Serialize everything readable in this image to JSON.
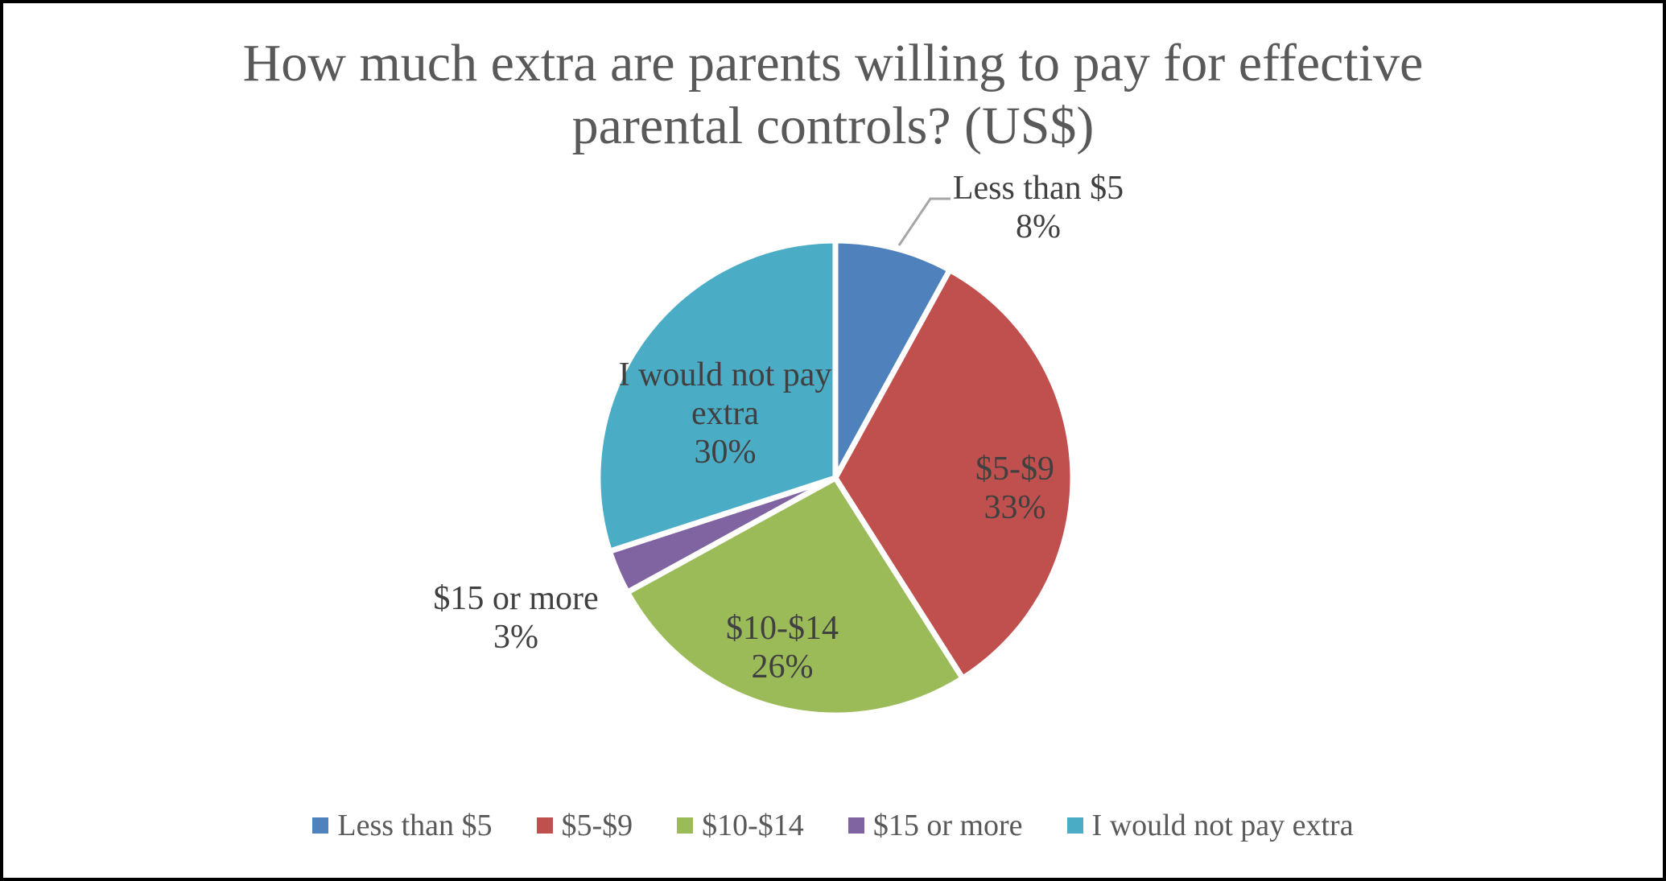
{
  "chart_data": {
    "type": "pie",
    "title": "How much extra are parents willing to pay for effective parental controls? (US$)",
    "title_lines": [
      "How much extra are parents willing to pay for effective",
      "parental controls? (US$)"
    ],
    "unit": "percent",
    "start_angle_deg": 0,
    "direction": "clockwise",
    "legend_position": "bottom",
    "slices": [
      {
        "label": "Less than $5",
        "value": 8,
        "pct_label": "8%",
        "color": "#4F81BD",
        "label_placement": "outside-top-right",
        "leader_line": true
      },
      {
        "label": "$5-$9",
        "value": 33,
        "pct_label": "33%",
        "color": "#C0504D",
        "label_placement": "inside",
        "leader_line": false
      },
      {
        "label": "$10-$14",
        "value": 26,
        "pct_label": "26%",
        "color": "#9BBB59",
        "label_placement": "inside",
        "leader_line": false
      },
      {
        "label": "$15 or more",
        "value": 3,
        "pct_label": "3%",
        "color": "#8064A2",
        "label_placement": "outside-left",
        "leader_line": false
      },
      {
        "label": "I would not pay extra",
        "value": 30,
        "pct_label": "30%",
        "color": "#4BACC6",
        "label_placement": "inside",
        "leader_line": false
      }
    ]
  },
  "theme": {
    "background": "#FFFFFF",
    "frame_border_color": "#000000",
    "title_color": "#595959",
    "label_color": "#404040",
    "legend_text_color": "#595959",
    "leader_line_color": "#A6A6A6",
    "slice_gap_color": "#FFFFFF"
  }
}
